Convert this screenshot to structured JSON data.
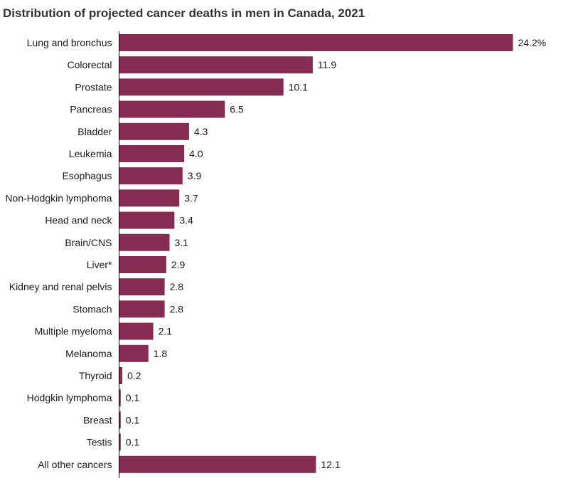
{
  "chart_data": {
    "type": "bar",
    "orientation": "horizontal",
    "title": "Distribution of projected cancer deaths in men in Canada, 2021",
    "categories": [
      "Lung and bronchus",
      "Colorectal",
      "Prostate",
      "Pancreas",
      "Bladder",
      "Leukemia",
      "Esophagus",
      "Non-Hodgkin lymphoma",
      "Head and neck",
      "Brain/CNS",
      "Liver*",
      "Kidney and renal pelvis",
      "Stomach",
      "Multiple myeloma",
      "Melanoma",
      "Thyroid",
      "Hodgkin lymphoma",
      "Breast",
      "Testis",
      "All other cancers"
    ],
    "values": [
      24.2,
      11.9,
      10.1,
      6.5,
      4.3,
      4.0,
      3.9,
      3.7,
      3.4,
      3.1,
      2.9,
      2.8,
      2.8,
      2.1,
      1.8,
      0.2,
      0.1,
      0.1,
      0.1,
      12.1
    ],
    "value_labels": [
      "24.2%",
      "11.9",
      "10.1",
      "6.5",
      "4.3",
      "4.0",
      "3.9",
      "3.7",
      "3.4",
      "3.1",
      "2.9",
      "2.8",
      "2.8",
      "2.1",
      "1.8",
      "0.2",
      "0.1",
      "0.1",
      "0.1",
      "12.1"
    ],
    "xlabel": "",
    "ylabel": "",
    "xlim": [
      0,
      24.2
    ],
    "grid": false,
    "legend": "none",
    "bar_color": "#862c53",
    "axis_color": "#000000"
  }
}
